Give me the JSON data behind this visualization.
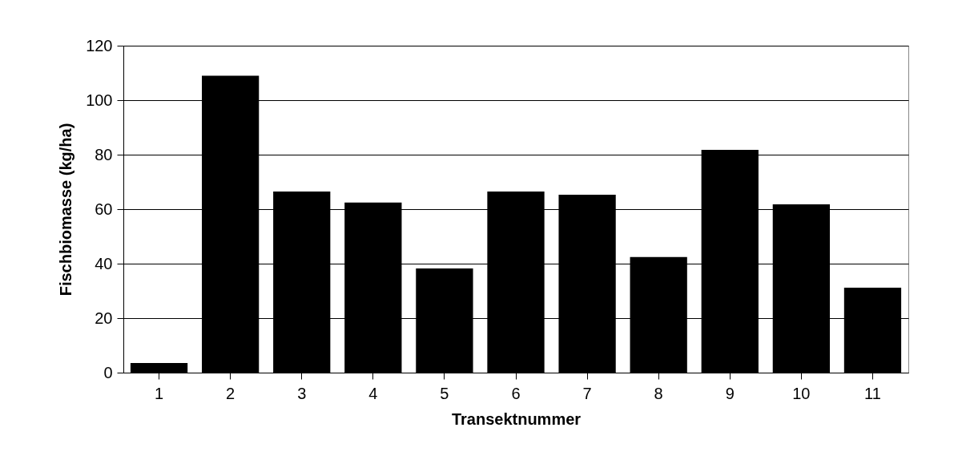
{
  "chart_data": {
    "type": "bar",
    "xlabel": "Transektnummer",
    "ylabel": "Fischbiomasse (kg/ha)",
    "categories": [
      "1",
      "2",
      "3",
      "4",
      "5",
      "6",
      "7",
      "8",
      "9",
      "10",
      "11"
    ],
    "values": [
      3.5,
      109,
      66.5,
      62.4,
      38.2,
      66.5,
      65.3,
      42.4,
      81.8,
      61.8,
      31.2
    ],
    "color": "#000000",
    "ylim": [
      0,
      120
    ],
    "yticks": [
      0,
      20,
      40,
      60,
      80,
      100,
      120
    ],
    "grid": "y"
  }
}
